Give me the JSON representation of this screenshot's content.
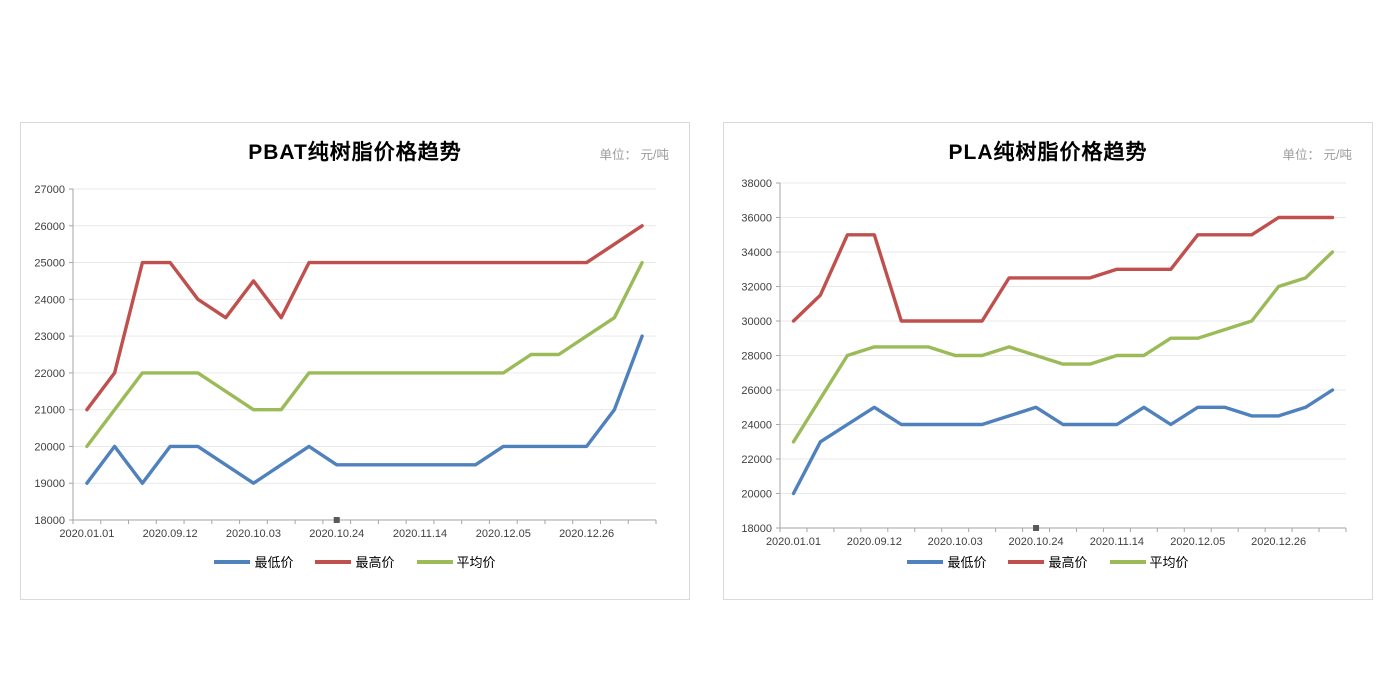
{
  "chart_data": [
    {
      "type": "line",
      "title": "PBAT纯树脂价格趋势",
      "unit_note": "单位： 元/吨",
      "ylim": [
        18000,
        27000
      ],
      "y_step": 1000,
      "n_points": 21,
      "grid": true,
      "legend_position": "bottom",
      "x_tick_labels": [
        "2020.01.01",
        "2020.09.12",
        "2020.10.03",
        "2020.10.24",
        "2020.11.14",
        "2020.12.05",
        "2020.12.26"
      ],
      "x_label_indices": [
        0,
        3,
        6,
        9,
        12,
        15,
        18
      ],
      "series": [
        {
          "name": "最低价",
          "color": "#4F81BD",
          "values": [
            19000,
            20000,
            19000,
            20000,
            20000,
            19500,
            19000,
            19500,
            20000,
            19500,
            19500,
            19500,
            19500,
            19500,
            19500,
            20000,
            20000,
            20000,
            20000,
            21000,
            23000
          ]
        },
        {
          "name": "最高价",
          "color": "#C0504D",
          "values": [
            21000,
            22000,
            25000,
            25000,
            24000,
            23500,
            24500,
            23500,
            25000,
            25000,
            25000,
            25000,
            25000,
            25000,
            25000,
            25000,
            25000,
            25000,
            25000,
            25500,
            26000
          ]
        },
        {
          "name": "平均价",
          "color": "#9BBB59",
          "values": [
            20000,
            21000,
            22000,
            22000,
            22000,
            21500,
            21000,
            21000,
            22000,
            22000,
            22000,
            22000,
            22000,
            22000,
            22000,
            22000,
            22500,
            22500,
            23000,
            23500,
            25000
          ]
        }
      ]
    },
    {
      "type": "line",
      "title": "PLA纯树脂价格趋势",
      "unit_note": "单位： 元/吨",
      "ylim": [
        18000,
        38000
      ],
      "y_step": 2000,
      "n_points": 21,
      "grid": true,
      "legend_position": "bottom",
      "x_tick_labels": [
        "2020.01.01",
        "2020.09.12",
        "2020.10.03",
        "2020.10.24",
        "2020.11.14",
        "2020.12.05",
        "2020.12.26"
      ],
      "x_label_indices": [
        0,
        3,
        6,
        9,
        12,
        15,
        18
      ],
      "series": [
        {
          "name": "最低价",
          "color": "#4F81BD",
          "values": [
            20000,
            23000,
            24000,
            25000,
            24000,
            24000,
            24000,
            24000,
            24500,
            25000,
            24000,
            24000,
            24000,
            25000,
            24000,
            25000,
            25000,
            24500,
            24500,
            25000,
            26000
          ]
        },
        {
          "name": "最高价",
          "color": "#C0504D",
          "values": [
            30000,
            31500,
            35000,
            35000,
            30000,
            30000,
            30000,
            30000,
            32500,
            32500,
            32500,
            32500,
            33000,
            33000,
            33000,
            35000,
            35000,
            35000,
            36000,
            36000,
            36000
          ]
        },
        {
          "name": "平均价",
          "color": "#9BBB59",
          "values": [
            23000,
            25500,
            28000,
            28500,
            28500,
            28500,
            28000,
            28000,
            28500,
            28000,
            27500,
            27500,
            28000,
            28000,
            29000,
            29000,
            29500,
            30000,
            32000,
            32500,
            34000
          ]
        }
      ]
    }
  ],
  "style": {
    "axis_color": "#a6a6a6",
    "gridline_color": "#e9e9e9",
    "tick_label_color": "#404040",
    "axis_marker_color": "#595959"
  }
}
